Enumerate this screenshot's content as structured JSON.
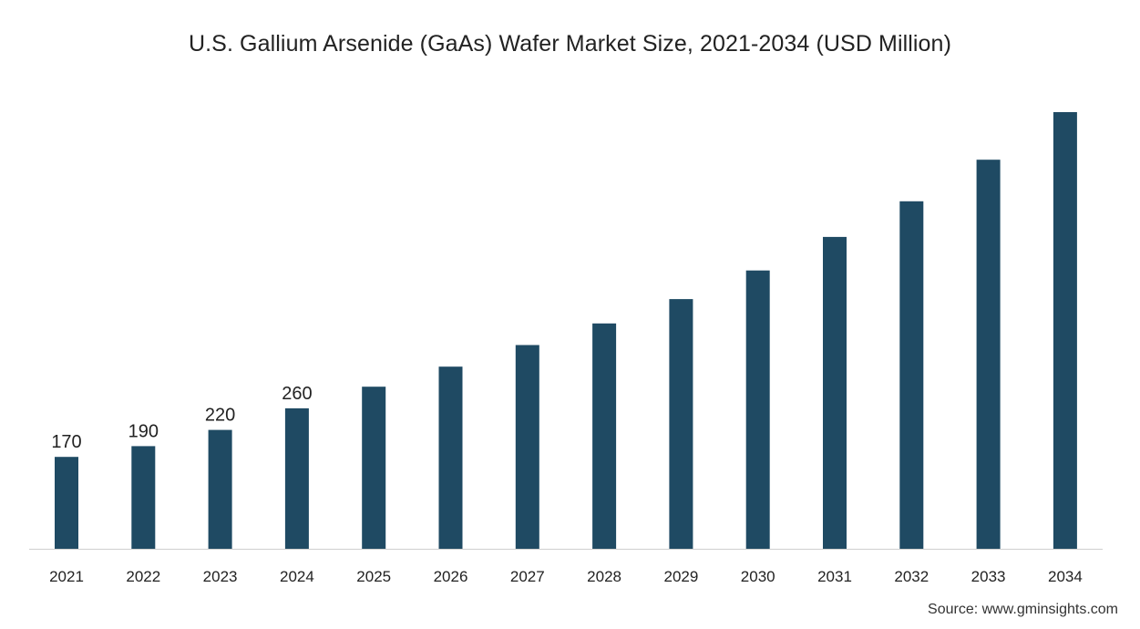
{
  "chart_data": {
    "type": "bar",
    "title": "U.S. Gallium Arsenide (GaAs) Wafer Market Size, 2021-2034 (USD Million)",
    "xlabel": "",
    "ylabel": "",
    "categories": [
      "2021",
      "2022",
      "2023",
      "2024",
      "2025",
      "2026",
      "2027",
      "2028",
      "2029",
      "2030",
      "2031",
      "2032",
      "2033",
      "2034"
    ],
    "values": [
      170,
      190,
      220,
      260,
      300,
      337,
      377,
      417,
      462,
      515,
      577,
      643,
      720,
      808
    ],
    "data_labels": [
      "170",
      "190",
      "220",
      "260",
      "",
      "",
      "",
      "",
      "",
      "",
      "",
      "",
      "",
      ""
    ],
    "ylim": [
      0,
      900
    ],
    "grid": false,
    "legend": "none",
    "bar_color": "#1f4a63",
    "axis_color": "#cfcfcf"
  },
  "source": "Source: www.gminsights.com"
}
